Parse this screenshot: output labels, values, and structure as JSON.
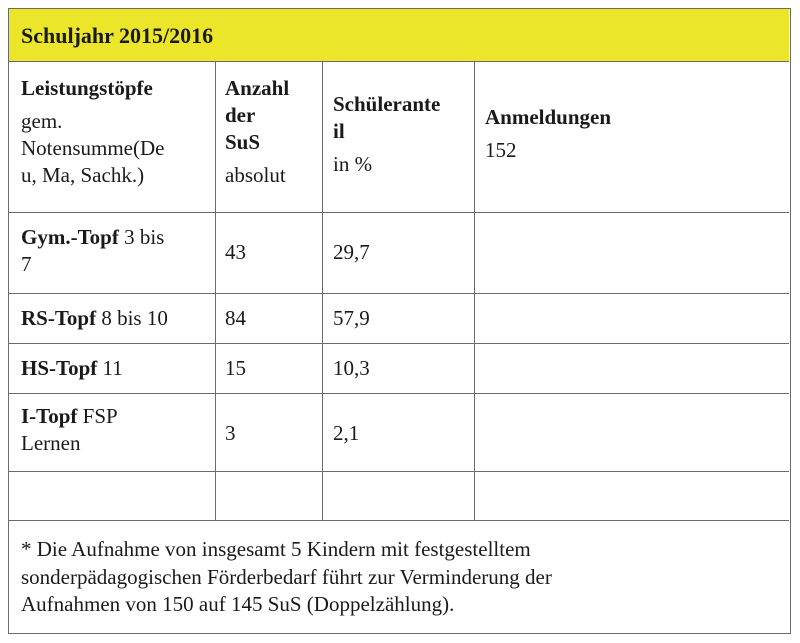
{
  "title": "Schuljahr 2015/2016",
  "header": {
    "col1_title": "Leistungstöpfe",
    "col1_line1": "gem.",
    "col1_line2": "Notensumme(De",
    "col1_line3": "u, Ma, Sachk.)",
    "col2_line1": "Anzahl",
    "col2_line2": "der",
    "col2_line3": "SuS",
    "col2_sub": "absolut",
    "col3_line1": "Schülerante",
    "col3_line2": "il",
    "col3_sub": "in %",
    "col4_title": "Anmeldungen",
    "col4_value": "152"
  },
  "rows": [
    {
      "name_bold": "Gym.-Topf",
      "name_rest_1": " 3 bis",
      "name_rest_2": "7",
      "count": "43",
      "share": "29,7"
    },
    {
      "name_bold": "RS-Topf",
      "name_rest_1": " 8 bis 10",
      "count": "84",
      "share": "57,9"
    },
    {
      "name_bold": "HS-Topf",
      "name_rest_1": " 11",
      "count": "15",
      "share": "10,3"
    },
    {
      "name_bold": "I-Topf",
      "name_rest_1": " FSP",
      "name_rest_2": "Lernen",
      "count": "3",
      "share": "2,1"
    }
  ],
  "footnote": {
    "line1": "* Die Aufnahme von insgesamt 5 Kindern mit festgestelltem",
    "line2": "sonderpädagogischen Förderbedarf führt zur Verminderung der",
    "line3": "Aufnahmen von 150 auf 145 SuS (Doppelzählung)."
  },
  "colors": {
    "title_bg": "#ece62a",
    "border": "#6b6b6b"
  }
}
